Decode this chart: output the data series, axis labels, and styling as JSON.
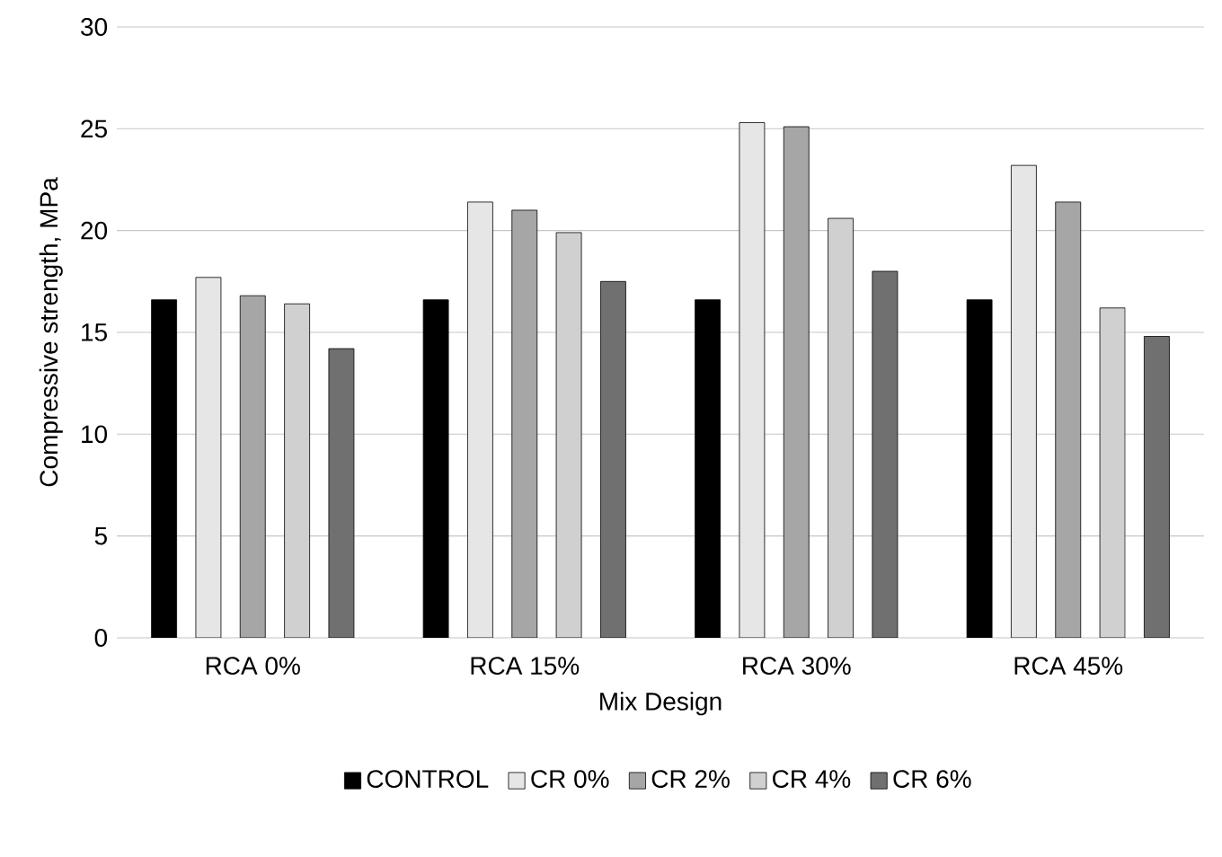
{
  "chart_data": {
    "type": "bar",
    "xlabel": "Mix Design",
    "ylabel": "Compressive strength,  MPa",
    "categories": [
      "RCA 0%",
      "RCA 15%",
      "RCA 30%",
      "RCA 45%"
    ],
    "series": [
      {
        "name": "CONTROL",
        "color": "#000000",
        "values": [
          16.6,
          16.6,
          16.6,
          16.6
        ]
      },
      {
        "name": "CR 0%",
        "color": "#e6e6e6",
        "values": [
          17.7,
          21.4,
          25.3,
          23.2
        ]
      },
      {
        "name": "CR 2%",
        "color": "#a6a6a6",
        "values": [
          16.8,
          21.0,
          25.1,
          21.4
        ]
      },
      {
        "name": "CR 4%",
        "color": "#d0d0d0",
        "values": [
          16.4,
          19.9,
          20.6,
          16.2
        ]
      },
      {
        "name": "CR 6%",
        "color": "#707070",
        "values": [
          14.2,
          17.5,
          18.0,
          14.8
        ]
      }
    ],
    "ylim": [
      0,
      30
    ],
    "yticks": [
      0,
      5,
      10,
      15,
      20,
      25,
      30
    ],
    "grid": "y",
    "legend": "bottom"
  }
}
